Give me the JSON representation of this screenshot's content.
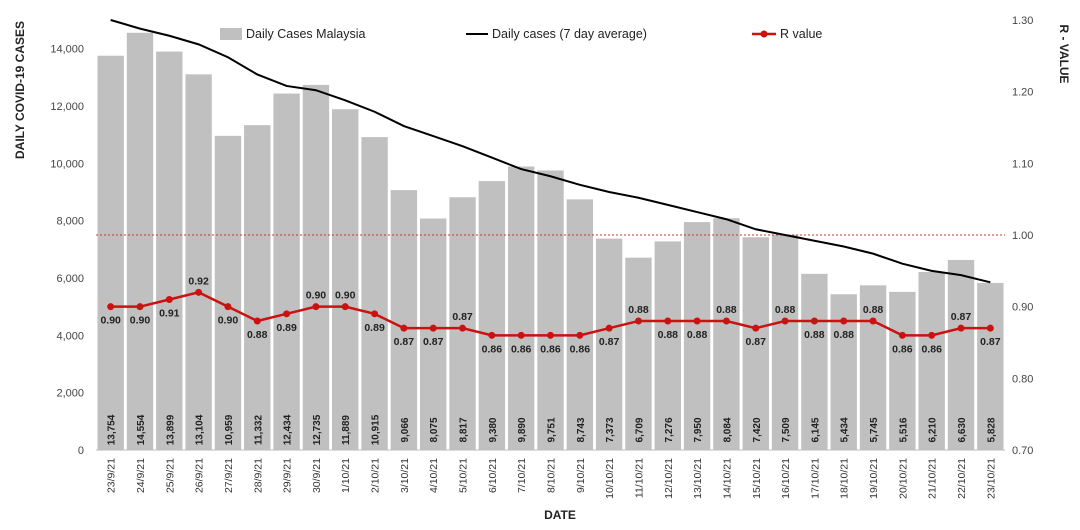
{
  "chart_data": {
    "type": "bar",
    "xlabel": "DATE",
    "ylabel": "DAILY COVID-19 CASES",
    "y2label": "R - VALUE",
    "ylim": [
      0,
      15000
    ],
    "y2lim": [
      0.7,
      1.3
    ],
    "yticks": [
      0,
      2000,
      4000,
      6000,
      8000,
      10000,
      12000,
      14000
    ],
    "ytick_labels": [
      "0",
      "2,000",
      "4,000",
      "6,000",
      "8,000",
      "10,000",
      "12,000",
      "14,000"
    ],
    "y2ticks": [
      0.7,
      0.8,
      0.9,
      1.0,
      1.1,
      1.2,
      1.3
    ],
    "y2tick_labels": [
      "0.70",
      "0.80",
      "0.90",
      "1.00",
      "1.10",
      "1.20",
      "1.30"
    ],
    "reference_line": {
      "axis": "y2",
      "value": 1.0,
      "color": "#c0392b"
    },
    "categories": [
      "23/9/21",
      "24/9/21",
      "25/9/21",
      "26/9/21",
      "27/9/21",
      "28/9/21",
      "29/9/21",
      "30/9/21",
      "1/10/21",
      "2/10/21",
      "3/10/21",
      "4/10/21",
      "5/10/21",
      "6/10/21",
      "7/10/21",
      "8/10/21",
      "9/10/21",
      "10/10/21",
      "11/10/21",
      "12/10/21",
      "13/10/21",
      "14/10/21",
      "15/10/21",
      "16/10/21",
      "17/10/21",
      "18/10/21",
      "19/10/21",
      "20/10/21",
      "21/10/21",
      "22/10/21",
      "23/10/21"
    ],
    "legend": {
      "position": "top"
    },
    "grid": false,
    "series": [
      {
        "name": "Daily Cases Malaysia",
        "type": "bar",
        "axis": "y",
        "color": "#c0c0c0",
        "values": [
          13754,
          14554,
          13899,
          13104,
          10959,
          11332,
          12434,
          12735,
          11889,
          10915,
          9066,
          8075,
          8817,
          9380,
          9890,
          9751,
          8743,
          7373,
          6709,
          7276,
          7950,
          8084,
          7420,
          7509,
          6145,
          5434,
          5745,
          5516,
          6210,
          6630,
          5828
        ],
        "labels": [
          "13,754",
          "14,554",
          "13,899",
          "13,104",
          "10,959",
          "11,332",
          "12,434",
          "12,735",
          "11,889",
          "10,915",
          "9,066",
          "8,075",
          "8,817",
          "9,380",
          "9,890",
          "9,751",
          "8,743",
          "7,373",
          "6,709",
          "7,276",
          "7,950",
          "8,084",
          "7,420",
          "7,509",
          "6,145",
          "5,434",
          "5,745",
          "5,516",
          "6,210",
          "6,630",
          "5,828"
        ]
      },
      {
        "name": "Daily cases (7 day average)",
        "type": "line",
        "axis": "y",
        "color": "#000000",
        "values": [
          15000,
          14700,
          14450,
          14150,
          13700,
          13100,
          12700,
          12550,
          12200,
          11800,
          11300,
          10950,
          10600,
          10200,
          9800,
          9550,
          9250,
          9000,
          8800,
          8550,
          8300,
          8050,
          7700,
          7500,
          7300,
          7100,
          6850,
          6500,
          6250,
          6100,
          5850
        ]
      },
      {
        "name": "R value",
        "type": "line",
        "axis": "y2",
        "color": "#cc1111",
        "values": [
          0.9,
          0.9,
          0.91,
          0.92,
          0.9,
          0.88,
          0.89,
          0.9,
          0.9,
          0.89,
          0.87,
          0.87,
          0.87,
          0.86,
          0.86,
          0.86,
          0.86,
          0.87,
          0.88,
          0.88,
          0.88,
          0.88,
          0.87,
          0.88,
          0.88,
          0.88,
          0.88,
          0.86,
          0.86,
          0.87,
          0.87
        ],
        "labels": [
          "0.90",
          "0.90",
          "0.91",
          "0.92",
          "0.90",
          "0.88",
          "0.89",
          "0.90",
          "0.90",
          "0.89",
          "0.87",
          "0.87",
          "0.87",
          "0.86",
          "0.86",
          "0.86",
          "0.86",
          "0.87",
          "0.88",
          "0.88",
          "0.88",
          "0.88",
          "0.87",
          "0.88",
          "0.88",
          "0.88",
          "0.88",
          "0.86",
          "0.86",
          "0.87",
          "0.87"
        ]
      }
    ]
  }
}
